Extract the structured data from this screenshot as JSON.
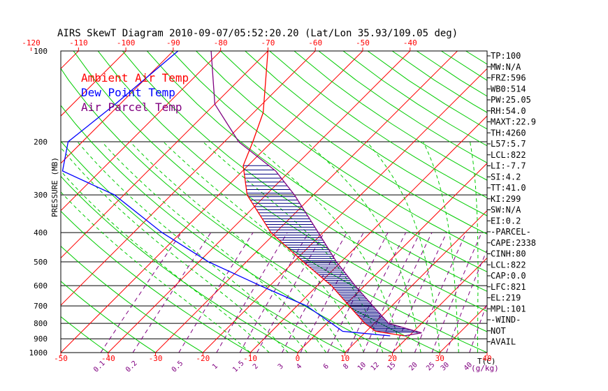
{
  "chart_data": {
    "type": "line",
    "title": "AIRS SkewT Diagram 2010-09-07/05:52:20.20 (Lat/Lon 35.93/109.05 deg)",
    "ylabel": "PRESSURE (MB)",
    "y_scale": "log",
    "ylim": [
      1000,
      100
    ],
    "xlim": [
      -50,
      40
    ],
    "pressure_ticks": [
      "100",
      "200",
      "300",
      "400",
      "500",
      "600",
      "700",
      "800",
      "900",
      "1000"
    ],
    "pressure_lines": [
      100,
      200,
      300,
      400,
      500,
      600,
      700,
      800,
      900,
      1000
    ],
    "bottom_temp_ticks": [
      "-50",
      "-40",
      "-30",
      "-20",
      "-10",
      "0",
      "10",
      "20",
      "30",
      "40"
    ],
    "bottom_temp_values": [
      -50,
      -40,
      -30,
      -20,
      -10,
      0,
      10,
      20,
      30,
      40
    ],
    "top_temp_ticks": [
      "-120",
      "-110",
      "-100",
      "-90",
      "-80",
      "-70",
      "-60",
      "-50",
      "-40"
    ],
    "top_temp_values": [
      -120,
      -110,
      -100,
      -90,
      -80,
      -70,
      -60,
      -50,
      -40
    ],
    "temp_unit": "T(C)",
    "mixing_ratio_ticks": [
      "0.1",
      "0.2",
      "0.5",
      "1",
      "1.5",
      "2",
      "3",
      "4",
      "6",
      "8",
      "10",
      "12",
      "15",
      "20",
      "25",
      "30",
      "40"
    ],
    "mixing_ratio_values": [
      0.1,
      0.2,
      0.5,
      1,
      1.5,
      2,
      3,
      4,
      6,
      8,
      10,
      12,
      15,
      20,
      25,
      30,
      40
    ],
    "mixing_ratio_unit": "(g/kg)",
    "legend": {
      "placement": "top-left",
      "entries": [
        {
          "label": "Ambient Air Temp",
          "color": "#ff0000"
        },
        {
          "label": "Dew Point Temp",
          "color": "#0000ff"
        },
        {
          "label": "Air Parcel Temp",
          "color": "#800080"
        }
      ]
    },
    "grid": true,
    "colors": {
      "isobar": "#000000",
      "isotherm": "#ff0000",
      "dry_adiabat": "#00cc00",
      "moist_adiabat": "#00cc00",
      "mixing_ratio": "#800080",
      "cape_hatch": "#000080"
    },
    "series": [
      {
        "name": "Ambient Air Temp",
        "color": "#ff0000",
        "points": [
          [
            100,
            -70
          ],
          [
            160,
            -58
          ],
          [
            200,
            -54
          ],
          [
            240,
            -51
          ],
          [
            300,
            -44
          ],
          [
            400,
            -31
          ],
          [
            500,
            -18
          ],
          [
            600,
            -7
          ],
          [
            700,
            1
          ],
          [
            800,
            8
          ],
          [
            850,
            12
          ],
          [
            880,
            19
          ]
        ]
      },
      {
        "name": "Dew Point Temp",
        "color": "#0000ff",
        "points": [
          [
            100,
            -89
          ],
          [
            150,
            -91
          ],
          [
            200,
            -93
          ],
          [
            250,
            -88
          ],
          [
            300,
            -72
          ],
          [
            400,
            -54
          ],
          [
            500,
            -38
          ],
          [
            600,
            -22
          ],
          [
            700,
            -8
          ],
          [
            800,
            1
          ],
          [
            850,
            5
          ],
          [
            880,
            16
          ]
        ]
      },
      {
        "name": "Air Parcel Temp",
        "color": "#800080",
        "points": [
          [
            100,
            -82
          ],
          [
            150,
            -70
          ],
          [
            200,
            -57
          ],
          [
            250,
            -43
          ],
          [
            300,
            -34
          ],
          [
            400,
            -21
          ],
          [
            500,
            -11
          ],
          [
            600,
            -2
          ],
          [
            700,
            6
          ],
          [
            800,
            13
          ],
          [
            860,
            22
          ],
          [
            880,
            19
          ]
        ]
      }
    ],
    "cape_area": {
      "from_pressure": 240,
      "to_pressure": 860
    }
  },
  "indices": [
    "TP:100",
    "MW:N/A",
    "FRZ:596",
    "WB0:514",
    "PW:25.05",
    "RH:54.0",
    "MAXT:22.9",
    "TH:4260",
    "L57:5.7",
    "LCL:822",
    "LI:-7.7",
    "SI:4.2",
    "TT:41.0",
    "KI:299",
    "SW:N/A",
    "EI:0.2",
    "-PARCEL-",
    "CAPE:2338",
    "CINH:80",
    "LCL:822",
    "CAP:0.0",
    "LFC:821",
    "EL:219",
    "MPL:101",
    "-WIND-",
    "NOT",
    "AVAIL"
  ]
}
